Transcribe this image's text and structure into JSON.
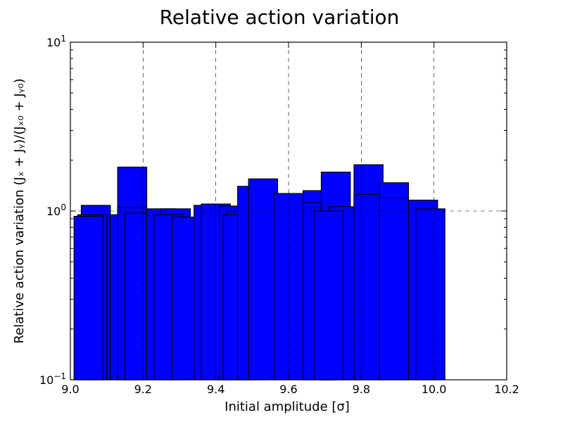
{
  "chart_data": {
    "type": "bar",
    "title": "Relative action variation",
    "xlabel": "Initial amplitude [σ]",
    "ylabel": "Relative action variation (Jₓ + Jᵧ)/(Jₓ₀ + Jᵧ₀)",
    "xlim": [
      9.0,
      10.2
    ],
    "ylim": [
      0.1,
      10
    ],
    "yscale": "log",
    "x_ticks": [
      "9.0",
      "9.2",
      "9.4",
      "9.6",
      "9.8",
      "10.0",
      "10.2"
    ],
    "x_tick_values": [
      9.0,
      9.2,
      9.4,
      9.6,
      9.8,
      10.0,
      10.2
    ],
    "y_ticks": [
      {
        "value": 0.1,
        "base": "10",
        "exp": "−1"
      },
      {
        "value": 1,
        "base": "10",
        "exp": "0"
      },
      {
        "value": 10,
        "base": "10",
        "exp": "1"
      }
    ],
    "grid": {
      "x": [
        9.2,
        9.4,
        9.6,
        9.8,
        10.0
      ],
      "y": [
        1.0
      ],
      "style": "dashed"
    },
    "bar_color": "#0000ff",
    "edge_color": "#000000",
    "bars": [
      {
        "x0": 9.03,
        "x1": 9.11,
        "value": 1.08
      },
      {
        "x0": 9.02,
        "x1": 9.1,
        "value": 0.95
      },
      {
        "x0": 9.01,
        "x1": 9.09,
        "value": 0.93
      },
      {
        "x0": 9.11,
        "x1": 9.19,
        "value": 0.95
      },
      {
        "x0": 9.13,
        "x1": 9.21,
        "value": 1.82
      },
      {
        "x0": 9.13,
        "x1": 9.21,
        "value": 1.05
      },
      {
        "x0": 9.15,
        "x1": 9.23,
        "value": 0.97
      },
      {
        "x0": 9.21,
        "x1": 9.29,
        "value": 1.03
      },
      {
        "x0": 9.25,
        "x1": 9.33,
        "value": 1.03
      },
      {
        "x0": 9.23,
        "x1": 9.31,
        "value": 0.95
      },
      {
        "x0": 9.28,
        "x1": 9.36,
        "value": 0.92
      },
      {
        "x0": 9.34,
        "x1": 9.42,
        "value": 1.08
      },
      {
        "x0": 9.36,
        "x1": 9.44,
        "value": 1.1
      },
      {
        "x0": 9.41,
        "x1": 9.49,
        "value": 1.07
      },
      {
        "x0": 9.43,
        "x1": 9.51,
        "value": 0.99
      },
      {
        "x0": 9.42,
        "x1": 9.5,
        "value": 0.95
      },
      {
        "x0": 9.46,
        "x1": 9.54,
        "value": 1.4
      },
      {
        "x0": 9.49,
        "x1": 9.57,
        "value": 1.55
      },
      {
        "x0": 9.56,
        "x1": 9.64,
        "value": 1.27
      },
      {
        "x0": 9.64,
        "x1": 9.72,
        "value": 1.32
      },
      {
        "x0": 9.64,
        "x1": 9.72,
        "value": 1.12
      },
      {
        "x0": 9.64,
        "x1": 9.72,
        "value": 1.05
      },
      {
        "x0": 9.69,
        "x1": 9.77,
        "value": 1.7
      },
      {
        "x0": 9.71,
        "x1": 9.79,
        "value": 1.06
      },
      {
        "x0": 9.67,
        "x1": 9.75,
        "value": 1.0
      },
      {
        "x0": 9.78,
        "x1": 9.86,
        "value": 1.88
      },
      {
        "x0": 9.78,
        "x1": 9.86,
        "value": 1.25
      },
      {
        "x0": 9.85,
        "x1": 9.93,
        "value": 1.47
      },
      {
        "x0": 9.85,
        "x1": 9.93,
        "value": 1.2
      },
      {
        "x0": 9.93,
        "x1": 10.01,
        "value": 1.16
      },
      {
        "x0": 9.95,
        "x1": 10.03,
        "value": 1.03
      }
    ]
  }
}
